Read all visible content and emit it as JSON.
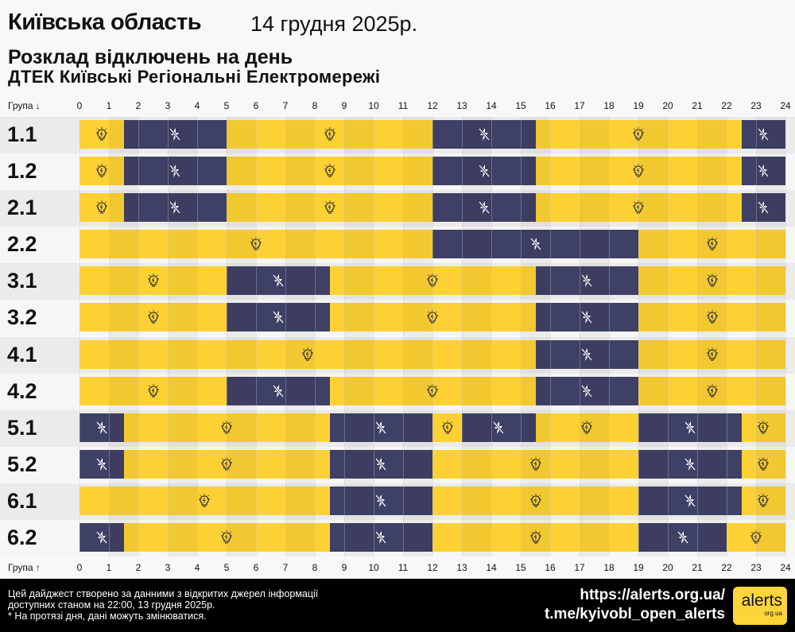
{
  "header": {
    "title": "Київська область",
    "date": "14 грудня 2025р.",
    "subtitle": "Розклад відключень на день",
    "provider": "ДТЕК Київські Регіональні Електромережі"
  },
  "axis": {
    "top_label": "Група ↓",
    "bottom_label": "Група ↑",
    "ticks": [
      "0",
      "1",
      "2",
      "3",
      "4",
      "5",
      "6",
      "7",
      "8",
      "9",
      "10",
      "11",
      "12",
      "13",
      "14",
      "15",
      "16",
      "17",
      "18",
      "19",
      "20",
      "21",
      "22",
      "23",
      "24"
    ]
  },
  "colors": {
    "on": "#fdd133",
    "off": "#3f4066",
    "icon_on": "bulb-icon",
    "icon_off": "no-power-icon"
  },
  "chart_data": {
    "type": "table",
    "xlabel": "",
    "xlim": [
      0,
      24
    ],
    "status_values": [
      "on",
      "off"
    ],
    "groups": [
      {
        "name": "1.1",
        "segments": [
          [
            0,
            1.5,
            "on"
          ],
          [
            1.5,
            5,
            "off"
          ],
          [
            5,
            12,
            "on"
          ],
          [
            12,
            15.5,
            "off"
          ],
          [
            15.5,
            22.5,
            "on"
          ],
          [
            22.5,
            24,
            "off"
          ]
        ]
      },
      {
        "name": "1.2",
        "segments": [
          [
            0,
            1.5,
            "on"
          ],
          [
            1.5,
            5,
            "off"
          ],
          [
            5,
            12,
            "on"
          ],
          [
            12,
            15.5,
            "off"
          ],
          [
            15.5,
            22.5,
            "on"
          ],
          [
            22.5,
            24,
            "off"
          ]
        ]
      },
      {
        "name": "2.1",
        "segments": [
          [
            0,
            1.5,
            "on"
          ],
          [
            1.5,
            5,
            "off"
          ],
          [
            5,
            12,
            "on"
          ],
          [
            12,
            15.5,
            "off"
          ],
          [
            15.5,
            22.5,
            "on"
          ],
          [
            22.5,
            24,
            "off"
          ]
        ]
      },
      {
        "name": "2.2",
        "segments": [
          [
            0,
            12,
            "on"
          ],
          [
            12,
            19,
            "off"
          ],
          [
            19,
            24,
            "on"
          ]
        ]
      },
      {
        "name": "3.1",
        "segments": [
          [
            0,
            5,
            "on"
          ],
          [
            5,
            8.5,
            "off"
          ],
          [
            8.5,
            15.5,
            "on"
          ],
          [
            15.5,
            19,
            "off"
          ],
          [
            19,
            24,
            "on"
          ]
        ]
      },
      {
        "name": "3.2",
        "segments": [
          [
            0,
            5,
            "on"
          ],
          [
            5,
            8.5,
            "off"
          ],
          [
            8.5,
            15.5,
            "on"
          ],
          [
            15.5,
            19,
            "off"
          ],
          [
            19,
            24,
            "on"
          ]
        ]
      },
      {
        "name": "4.1",
        "segments": [
          [
            0,
            15.5,
            "on"
          ],
          [
            15.5,
            19,
            "off"
          ],
          [
            19,
            24,
            "on"
          ]
        ]
      },
      {
        "name": "4.2",
        "segments": [
          [
            0,
            5,
            "on"
          ],
          [
            5,
            8.5,
            "off"
          ],
          [
            8.5,
            15.5,
            "on"
          ],
          [
            15.5,
            19,
            "off"
          ],
          [
            19,
            24,
            "on"
          ]
        ]
      },
      {
        "name": "5.1",
        "segments": [
          [
            0,
            1.5,
            "off"
          ],
          [
            1.5,
            8.5,
            "on"
          ],
          [
            8.5,
            12,
            "off"
          ],
          [
            12,
            13,
            "on"
          ],
          [
            13,
            15.5,
            "off"
          ],
          [
            15.5,
            19,
            "on"
          ],
          [
            19,
            22.5,
            "off"
          ],
          [
            22.5,
            24,
            "on"
          ]
        ]
      },
      {
        "name": "5.2",
        "segments": [
          [
            0,
            1.5,
            "off"
          ],
          [
            1.5,
            8.5,
            "on"
          ],
          [
            8.5,
            12,
            "off"
          ],
          [
            12,
            19,
            "on"
          ],
          [
            19,
            22.5,
            "off"
          ],
          [
            22.5,
            24,
            "on"
          ]
        ]
      },
      {
        "name": "6.1",
        "segments": [
          [
            0,
            8.5,
            "on"
          ],
          [
            8.5,
            12,
            "off"
          ],
          [
            12,
            19,
            "on"
          ],
          [
            19,
            22.5,
            "off"
          ],
          [
            22.5,
            24,
            "on"
          ]
        ]
      },
      {
        "name": "6.2",
        "segments": [
          [
            0,
            1.5,
            "off"
          ],
          [
            1.5,
            8.5,
            "on"
          ],
          [
            8.5,
            12,
            "off"
          ],
          [
            12,
            19,
            "on"
          ],
          [
            19,
            22,
            "off"
          ],
          [
            22,
            24,
            "on"
          ]
        ]
      }
    ]
  },
  "footer": {
    "note1": "Цей дайджест створено за данними з відкритих джерел інформації",
    "note2": "доступних станом на 22:00, 13 грудня 2025р.",
    "note3": "* На протязі дня, дані можуть змінюватися.",
    "link1": "https://alerts.org.ua/",
    "link2": "t.me/kyivobl_open_alerts",
    "logo_main": "alerts",
    "logo_sub": "org.ua"
  }
}
